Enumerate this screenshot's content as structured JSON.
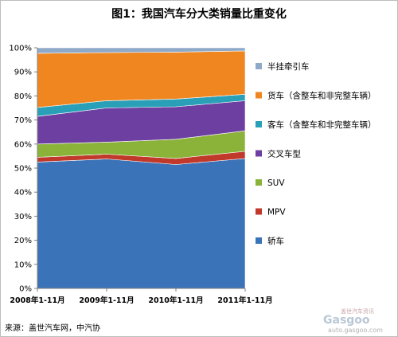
{
  "chart_data": {
    "type": "area",
    "stacked": true,
    "percent": true,
    "title": "图1：我国汽车分大类销量比重变化",
    "categories": [
      "2008年1-11月",
      "2009年1-11月",
      "2010年1-11月",
      "2011年1-11月"
    ],
    "ylim": [
      0,
      100
    ],
    "yticks": [
      "0%",
      "10%",
      "20%",
      "30%",
      "40%",
      "50%",
      "60%",
      "70%",
      "80%",
      "90%",
      "100%"
    ],
    "grid": false,
    "legend_placement": "right",
    "series": [
      {
        "name": "轿车",
        "color": "#3b73b9",
        "values": [
          52.5,
          53.8,
          51.5,
          54.0
        ]
      },
      {
        "name": "MPV",
        "color": "#c0392b",
        "values": [
          2.0,
          2.0,
          2.5,
          3.0
        ]
      },
      {
        "name": "SUV",
        "color": "#8bb33a",
        "values": [
          5.5,
          5.0,
          8.0,
          8.5
        ]
      },
      {
        "name": "交叉车型",
        "color": "#6c3fa0",
        "values": [
          11.5,
          14.2,
          13.5,
          12.5
        ]
      },
      {
        "name": "客车（含整车和非完整车辆）",
        "color": "#2aa0b8",
        "values": [
          3.7,
          3.0,
          3.2,
          2.7
        ]
      },
      {
        "name": "货车（含整车和非完整车辆）",
        "color": "#f0861f",
        "values": [
          22.5,
          20.0,
          19.5,
          18.0
        ]
      },
      {
        "name": "半挂牵引车",
        "color": "#8fa9c8",
        "values": [
          2.3,
          2.0,
          1.8,
          1.3
        ]
      }
    ]
  },
  "source": "来源：盖世汽车网，中汽协",
  "watermark": {
    "cn": "盖世汽车资讯",
    "logo": "Gasgoo",
    "url": "auto.gasgoo.com"
  }
}
